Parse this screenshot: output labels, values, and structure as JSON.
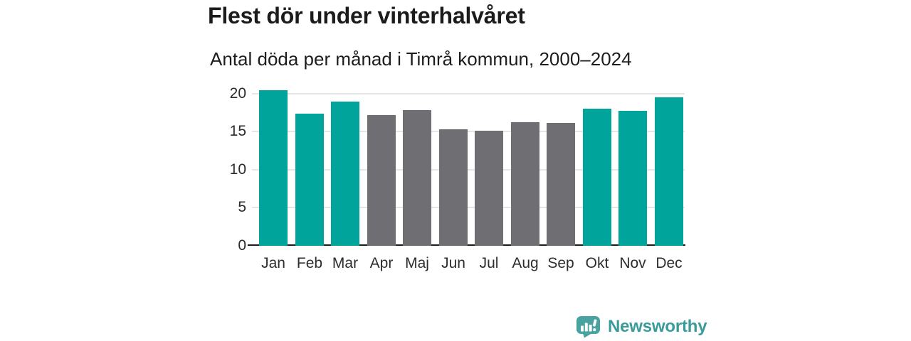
{
  "chart_data": {
    "type": "bar",
    "title": "Flest dör under vinterhalvåret",
    "subtitle": "Antal döda per månad i Timrå kommun, 2000–2024",
    "categories": [
      "Jan",
      "Feb",
      "Mar",
      "Apr",
      "Maj",
      "Jun",
      "Jul",
      "Aug",
      "Sep",
      "Okt",
      "Nov",
      "Dec"
    ],
    "values": [
      20.4,
      17.4,
      18.9,
      17.2,
      17.8,
      15.3,
      15.1,
      16.2,
      16.1,
      18.0,
      17.7,
      19.5
    ],
    "bar_color_keys": [
      "winter",
      "winter",
      "winter",
      "summer",
      "summer",
      "summer",
      "summer",
      "summer",
      "summer",
      "winter",
      "winter",
      "winter"
    ],
    "colors": {
      "winter": "#00a49b",
      "summer": "#6e6e73"
    },
    "yticks": [
      0,
      5,
      10,
      15,
      20
    ],
    "ylim": [
      0,
      21
    ],
    "xlabel": "",
    "ylabel": "",
    "grid": true,
    "legend": false,
    "gridline_color": "#e5e5e5",
    "axis_line_color": "#1a1a1a"
  },
  "branding": {
    "logo_text": "Newsworthy",
    "logo_text_color": "#3a9b9b",
    "icon_color": "#47a2a0"
  }
}
